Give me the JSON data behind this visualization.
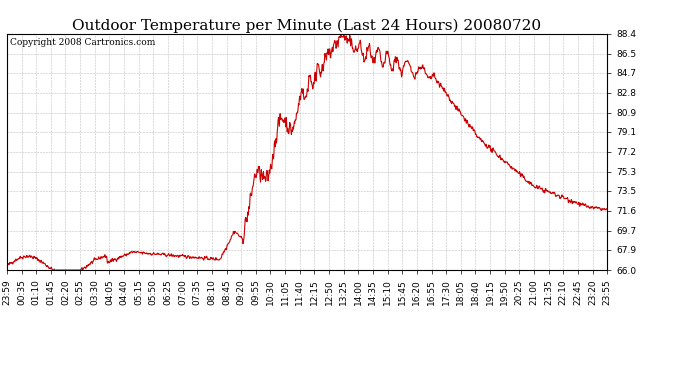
{
  "title": "Outdoor Temperature per Minute (Last 24 Hours) 20080720",
  "copyright_text": "Copyright 2008 Cartronics.com",
  "line_color": "#cc0000",
  "background_color": "#ffffff",
  "plot_background": "#ffffff",
  "grid_color": "#b0b0b0",
  "ylim": [
    66.0,
    88.4
  ],
  "yticks": [
    66.0,
    67.9,
    69.7,
    71.6,
    73.5,
    75.3,
    77.2,
    79.1,
    80.9,
    82.8,
    84.7,
    86.5,
    88.4
  ],
  "xtick_labels": [
    "23:59",
    "00:35",
    "01:10",
    "01:45",
    "02:20",
    "02:55",
    "03:30",
    "04:05",
    "04:40",
    "05:15",
    "05:50",
    "06:25",
    "07:00",
    "07:35",
    "08:10",
    "08:45",
    "09:20",
    "09:55",
    "10:30",
    "11:05",
    "11:40",
    "12:15",
    "12:50",
    "13:25",
    "14:00",
    "14:35",
    "15:10",
    "15:45",
    "16:20",
    "16:55",
    "17:30",
    "18:05",
    "18:40",
    "19:15",
    "19:50",
    "20:25",
    "21:00",
    "21:35",
    "22:10",
    "22:45",
    "23:20",
    "23:55"
  ],
  "title_fontsize": 11,
  "tick_fontsize": 6.5,
  "copyright_fontsize": 6.5,
  "line_width": 0.8
}
